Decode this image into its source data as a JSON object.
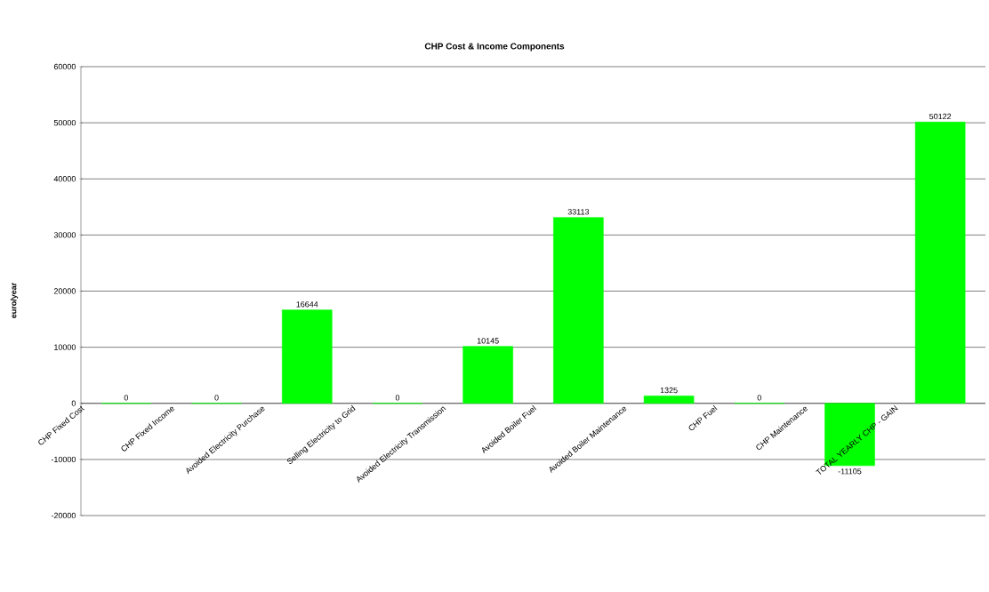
{
  "chart_data": {
    "type": "bar",
    "title": "CHP Cost & Income Components",
    "ylabel": "euro/year",
    "categories": [
      "CHP Fixed Cost",
      "CHP Fixed Income",
      "Avoided Electricity Purchase",
      "Selling Electricity to Grid",
      "Avoided Electricity Transmission",
      "Avoided Boiler Fuel",
      "Avoided Boiler Maintenance",
      "CHP Fuel",
      "CHP Maintenance",
      "TOTAL YEARLY CHP - GAIN"
    ],
    "values": [
      0,
      0,
      16644,
      0,
      10145,
      33113,
      1325,
      0,
      -11105,
      50122
    ],
    "color": "#00ff00",
    "ylim": [
      -20000,
      60000
    ],
    "yticks": [
      -20000,
      -10000,
      0,
      10000,
      20000,
      30000,
      40000,
      50000,
      60000
    ],
    "grid": "y",
    "data_labels": true
  }
}
